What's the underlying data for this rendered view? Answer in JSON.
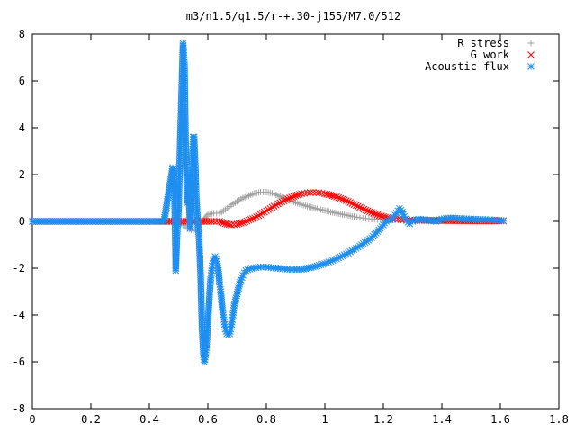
{
  "chart_data": {
    "type": "scatter",
    "title": "m3/n1.5/q1.5/r-+.30-j155/M7.0/512",
    "xlabel": "",
    "ylabel": "",
    "xlim": [
      0,
      1.8
    ],
    "ylim": [
      -8,
      8
    ],
    "x_ticks": [
      "0",
      "0.2",
      "0.4",
      "0.6",
      "0.8",
      "1",
      "1.2",
      "1.4",
      "1.6",
      "1.8"
    ],
    "y_ticks": [
      "8",
      "6",
      "4",
      "2",
      "0",
      "-2",
      "-4",
      "-6",
      "-8"
    ],
    "grid": false,
    "legend_position": "top-right",
    "series": [
      {
        "name": "R stress",
        "marker": "plus",
        "color": "#a0a0a0",
        "points": [
          [
            0.0,
            0
          ],
          [
            0.1,
            0
          ],
          [
            0.2,
            0
          ],
          [
            0.3,
            0
          ],
          [
            0.4,
            0
          ],
          [
            0.46,
            0.0
          ],
          [
            0.49,
            0.05
          ],
          [
            0.51,
            -0.1
          ],
          [
            0.53,
            -0.3
          ],
          [
            0.55,
            -0.4
          ],
          [
            0.57,
            -0.2
          ],
          [
            0.6,
            0.3
          ],
          [
            0.62,
            0.35
          ],
          [
            0.64,
            0.35
          ],
          [
            0.66,
            0.5
          ],
          [
            0.68,
            0.7
          ],
          [
            0.7,
            0.85
          ],
          [
            0.72,
            1.0
          ],
          [
            0.74,
            1.1
          ],
          [
            0.76,
            1.2
          ],
          [
            0.78,
            1.25
          ],
          [
            0.8,
            1.25
          ],
          [
            0.82,
            1.2
          ],
          [
            0.84,
            1.1
          ],
          [
            0.86,
            1.0
          ],
          [
            0.88,
            0.9
          ],
          [
            0.9,
            0.8
          ],
          [
            0.92,
            0.72
          ],
          [
            0.94,
            0.65
          ],
          [
            0.96,
            0.58
          ],
          [
            0.98,
            0.52
          ],
          [
            1.0,
            0.46
          ],
          [
            1.02,
            0.4
          ],
          [
            1.04,
            0.35
          ],
          [
            1.06,
            0.3
          ],
          [
            1.08,
            0.25
          ],
          [
            1.1,
            0.2
          ],
          [
            1.12,
            0.16
          ],
          [
            1.14,
            0.12
          ],
          [
            1.16,
            0.1
          ],
          [
            1.18,
            0.08
          ],
          [
            1.2,
            0.07
          ],
          [
            1.22,
            0.06
          ],
          [
            1.24,
            0.05
          ],
          [
            1.26,
            0.05
          ],
          [
            1.28,
            0.04
          ],
          [
            1.3,
            0.03
          ],
          [
            1.34,
            0.02
          ],
          [
            1.4,
            0.02
          ],
          [
            1.46,
            0.01
          ],
          [
            1.52,
            0.01
          ],
          [
            1.58,
            0.01
          ],
          [
            1.61,
            0.01
          ]
        ]
      },
      {
        "name": "G work",
        "marker": "cross",
        "color": "#ff0000",
        "points": [
          [
            0.0,
            0
          ],
          [
            0.1,
            0
          ],
          [
            0.2,
            0
          ],
          [
            0.3,
            0
          ],
          [
            0.4,
            0
          ],
          [
            0.46,
            0
          ],
          [
            0.5,
            0.0
          ],
          [
            0.54,
            0.0
          ],
          [
            0.58,
            0.0
          ],
          [
            0.62,
            0.0
          ],
          [
            0.64,
            0.0
          ],
          [
            0.66,
            -0.1
          ],
          [
            0.68,
            -0.15
          ],
          [
            0.7,
            -0.12
          ],
          [
            0.72,
            -0.05
          ],
          [
            0.74,
            0.05
          ],
          [
            0.76,
            0.15
          ],
          [
            0.78,
            0.3
          ],
          [
            0.8,
            0.45
          ],
          [
            0.82,
            0.6
          ],
          [
            0.84,
            0.75
          ],
          [
            0.86,
            0.88
          ],
          [
            0.88,
            1.0
          ],
          [
            0.9,
            1.1
          ],
          [
            0.92,
            1.18
          ],
          [
            0.94,
            1.22
          ],
          [
            0.96,
            1.24
          ],
          [
            0.98,
            1.22
          ],
          [
            1.0,
            1.18
          ],
          [
            1.02,
            1.12
          ],
          [
            1.04,
            1.05
          ],
          [
            1.06,
            0.95
          ],
          [
            1.08,
            0.85
          ],
          [
            1.1,
            0.72
          ],
          [
            1.12,
            0.6
          ],
          [
            1.14,
            0.48
          ],
          [
            1.16,
            0.38
          ],
          [
            1.18,
            0.28
          ],
          [
            1.2,
            0.2
          ],
          [
            1.22,
            0.14
          ],
          [
            1.24,
            0.1
          ],
          [
            1.26,
            0.08
          ],
          [
            1.28,
            0.06
          ],
          [
            1.3,
            0.05
          ],
          [
            1.34,
            0.05
          ],
          [
            1.4,
            0.04
          ],
          [
            1.46,
            0.03
          ],
          [
            1.52,
            0.02
          ],
          [
            1.58,
            0.02
          ],
          [
            1.61,
            0.02
          ]
        ]
      },
      {
        "name": "Acoustic flux",
        "marker": "star",
        "color": "#1e8ef0",
        "points": [
          [
            0.0,
            0
          ],
          [
            0.05,
            0
          ],
          [
            0.1,
            0
          ],
          [
            0.15,
            0
          ],
          [
            0.2,
            0
          ],
          [
            0.25,
            0
          ],
          [
            0.3,
            0
          ],
          [
            0.35,
            0
          ],
          [
            0.4,
            0
          ],
          [
            0.45,
            0
          ],
          [
            0.48,
            2.3
          ],
          [
            0.485,
            1.7
          ],
          [
            0.49,
            -1.7
          ],
          [
            0.49,
            -2.1
          ],
          [
            0.495,
            -0.5
          ],
          [
            0.5,
            0.5
          ],
          [
            0.505,
            3.2
          ],
          [
            0.51,
            5.4
          ],
          [
            0.515,
            7.6
          ],
          [
            0.518,
            7.1
          ],
          [
            0.52,
            6.7
          ],
          [
            0.522,
            4.9
          ],
          [
            0.525,
            2.7
          ],
          [
            0.53,
            0.8
          ],
          [
            0.535,
            1.0
          ],
          [
            0.54,
            -0.3
          ],
          [
            0.545,
            2.1
          ],
          [
            0.548,
            3.1
          ],
          [
            0.55,
            3.6
          ],
          [
            0.553,
            3.6
          ],
          [
            0.555,
            3.0
          ],
          [
            0.558,
            2.1
          ],
          [
            0.56,
            1.1
          ],
          [
            0.565,
            0.0
          ],
          [
            0.57,
            -0.7
          ],
          [
            0.575,
            -2.2
          ],
          [
            0.58,
            -4.5
          ],
          [
            0.585,
            -5.7
          ],
          [
            0.588,
            -6.0
          ],
          [
            0.59,
            -5.9
          ],
          [
            0.595,
            -5.4
          ],
          [
            0.6,
            -4.4
          ],
          [
            0.605,
            -3.3
          ],
          [
            0.61,
            -2.4
          ],
          [
            0.615,
            -1.9
          ],
          [
            0.62,
            -1.6
          ],
          [
            0.625,
            -1.5
          ],
          [
            0.63,
            -1.7
          ],
          [
            0.635,
            -2.0
          ],
          [
            0.64,
            -2.6
          ],
          [
            0.645,
            -3.1
          ],
          [
            0.65,
            -3.8
          ],
          [
            0.655,
            -4.2
          ],
          [
            0.66,
            -4.6
          ],
          [
            0.665,
            -4.8
          ],
          [
            0.67,
            -4.85
          ],
          [
            0.675,
            -4.8
          ],
          [
            0.68,
            -4.5
          ],
          [
            0.685,
            -4.1
          ],
          [
            0.69,
            -3.6
          ],
          [
            0.7,
            -3.1
          ],
          [
            0.71,
            -2.6
          ],
          [
            0.72,
            -2.3
          ],
          [
            0.73,
            -2.1
          ],
          [
            0.75,
            -2.0
          ],
          [
            0.78,
            -1.95
          ],
          [
            0.8,
            -1.95
          ],
          [
            0.84,
            -2.0
          ],
          [
            0.88,
            -2.05
          ],
          [
            0.92,
            -2.05
          ],
          [
            0.96,
            -1.95
          ],
          [
            1.0,
            -1.8
          ],
          [
            1.04,
            -1.6
          ],
          [
            1.08,
            -1.35
          ],
          [
            1.12,
            -1.05
          ],
          [
            1.16,
            -0.7
          ],
          [
            1.19,
            -0.3
          ],
          [
            1.21,
            0.0
          ],
          [
            1.23,
            0.1
          ],
          [
            1.245,
            0.35
          ],
          [
            1.255,
            0.55
          ],
          [
            1.265,
            0.4
          ],
          [
            1.275,
            0.1
          ],
          [
            1.29,
            -0.1
          ],
          [
            1.3,
            0.0
          ],
          [
            1.32,
            0.1
          ],
          [
            1.35,
            0.05
          ],
          [
            1.38,
            0.0
          ],
          [
            1.4,
            0.1
          ],
          [
            1.43,
            0.15
          ],
          [
            1.46,
            0.12
          ],
          [
            1.5,
            0.1
          ],
          [
            1.54,
            0.08
          ],
          [
            1.58,
            0.06
          ],
          [
            1.61,
            0.03
          ]
        ]
      }
    ]
  }
}
